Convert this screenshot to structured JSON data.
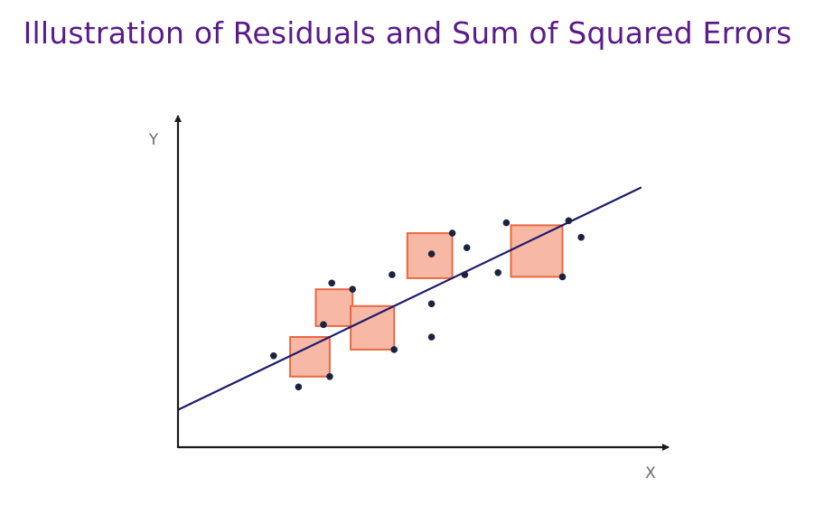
{
  "title": "Illustration of Residuals and Sum of Squared Errors",
  "axes": {
    "x_label": "X",
    "y_label": "Y"
  },
  "colors": {
    "title": "#5b1a8c",
    "axis": "#1a1a1a",
    "regression_line": "#1f1b6e",
    "point": "#1c2340",
    "square_fill": "#f7b8a6",
    "square_stroke": "#e8683e"
  },
  "regression_line": {
    "slope": 0.48,
    "intercept": 0.9
  },
  "points": [
    {
      "x": 2.3,
      "y": 2.2
    },
    {
      "x": 2.9,
      "y": 1.45
    },
    {
      "x": 3.5,
      "y": 2.95
    },
    {
      "x": 3.65,
      "y": 1.7
    },
    {
      "x": 3.7,
      "y": 3.95
    },
    {
      "x": 4.2,
      "y": 3.8
    },
    {
      "x": 5.2,
      "y": 2.35
    },
    {
      "x": 5.15,
      "y": 4.15
    },
    {
      "x": 6.1,
      "y": 2.65
    },
    {
      "x": 6.1,
      "y": 3.45
    },
    {
      "x": 6.1,
      "y": 4.65
    },
    {
      "x": 6.6,
      "y": 5.15
    },
    {
      "x": 6.95,
      "y": 4.8
    },
    {
      "x": 6.9,
      "y": 4.15
    },
    {
      "x": 7.7,
      "y": 4.2
    },
    {
      "x": 7.9,
      "y": 5.4
    },
    {
      "x": 9.25,
      "y": 4.1
    },
    {
      "x": 9.4,
      "y": 5.45
    },
    {
      "x": 9.7,
      "y": 5.05
    }
  ],
  "residual_squares": [
    {
      "x": 3.65,
      "y": 1.7
    },
    {
      "x": 4.2,
      "y": 3.8
    },
    {
      "x": 5.2,
      "y": 2.35
    },
    {
      "x": 6.6,
      "y": 5.15
    },
    {
      "x": 9.25,
      "y": 4.1
    }
  ]
}
